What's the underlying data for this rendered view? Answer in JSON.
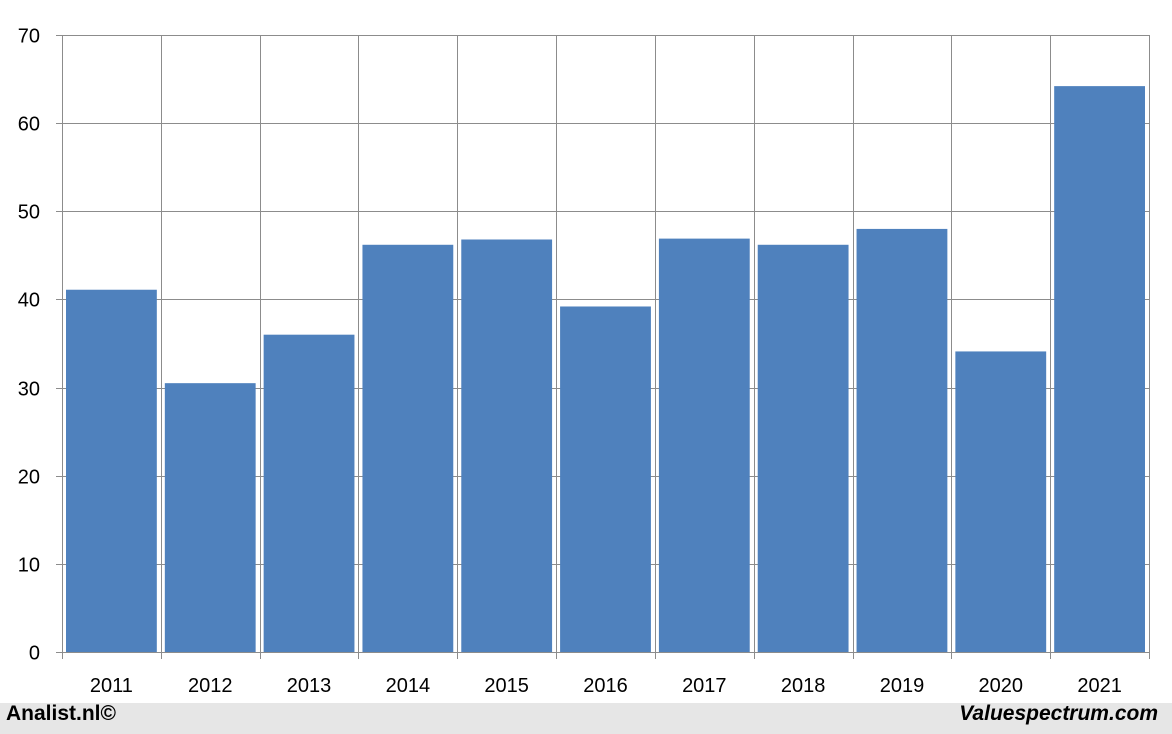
{
  "chart_data": {
    "type": "bar",
    "categories": [
      "2011",
      "2012",
      "2013",
      "2014",
      "2015",
      "2016",
      "2017",
      "2018",
      "2019",
      "2020",
      "2021"
    ],
    "values": [
      41.1,
      30.5,
      36.0,
      46.2,
      46.8,
      39.2,
      46.9,
      46.2,
      48.0,
      34.1,
      64.2
    ],
    "ylim": [
      0,
      70
    ],
    "yticks": [
      0,
      10,
      20,
      30,
      40,
      50,
      60,
      70
    ],
    "grid": true,
    "bar_color": "#4f81bd"
  },
  "footer": {
    "left": "Analist.nl©",
    "right": "Valuespectrum.com"
  }
}
